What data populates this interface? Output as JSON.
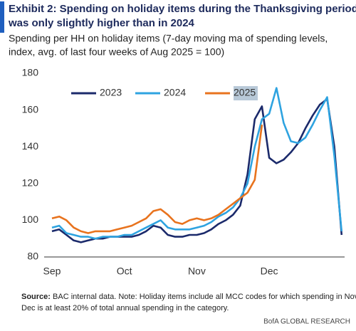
{
  "chart_data": {
    "type": "line",
    "title": [
      "Exhibit 2: Spending on holiday items during the Thanksgiving period",
      "was only slightly higher than in 2024"
    ],
    "subtitle": [
      "Spending per HH on holiday items (7-day moving ma of spending levels,",
      "index, avg. of last four weeks of Aug 2025 = 100)"
    ],
    "categories": [
      "Sep",
      null,
      null,
      null,
      null,
      null,
      null,
      null,
      null,
      null,
      "Oct",
      null,
      null,
      null,
      null,
      null,
      null,
      null,
      null,
      null,
      "Nov",
      null,
      null,
      null,
      null,
      null,
      null,
      null,
      null,
      null,
      "Dec",
      null,
      null,
      null,
      null,
      null,
      null,
      null,
      null,
      null,
      null
    ],
    "series": [
      {
        "name": "2023",
        "color": "#1b2a6b",
        "values": [
          94,
          95,
          92,
          89,
          88,
          89,
          90,
          90,
          91,
          91,
          91,
          91,
          92,
          94,
          97,
          96,
          92,
          91,
          91,
          92,
          92,
          93,
          95,
          98,
          100,
          103,
          108,
          125,
          155,
          162,
          134,
          131,
          133,
          137,
          142,
          150,
          157,
          163,
          166,
          140,
          92
        ]
      },
      {
        "name": "2024",
        "color": "#2ea3e0",
        "values": [
          96,
          97,
          93,
          92,
          91,
          91,
          90,
          91,
          91,
          91,
          92,
          92,
          94,
          96,
          98,
          100,
          96,
          95,
          95,
          95,
          96,
          97,
          99,
          102,
          104,
          107,
          112,
          120,
          140,
          155,
          158,
          172,
          153,
          143,
          142,
          145,
          152,
          160,
          167,
          135,
          94
        ]
      },
      {
        "name": "2025",
        "color": "#e8731e",
        "values": [
          101,
          102,
          100,
          96,
          94,
          93,
          94,
          94,
          94,
          95,
          96,
          97,
          99,
          101,
          105,
          106,
          103,
          99,
          98,
          100,
          101,
          100,
          101,
          103,
          106,
          109,
          112,
          115,
          122,
          152,
          null,
          null,
          null,
          null,
          null,
          null,
          null,
          null,
          null,
          null,
          null
        ]
      }
    ],
    "ylim": [
      80,
      180
    ],
    "yticks": [
      80,
      100,
      120,
      140,
      160,
      180
    ],
    "grid": false,
    "legend": "top",
    "note": {
      "label": "Source:",
      "lines": [
        " BAC internal data. Note: Holiday items include all MCC codes for which spending in Nov-",
        "Dec is at least 20% of total annual spending in the category."
      ]
    },
    "brand": "BofA GLOBAL RESEARCH"
  }
}
